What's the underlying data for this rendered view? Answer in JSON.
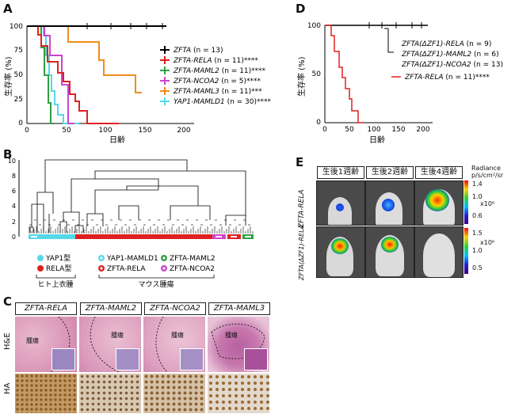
{
  "panels": {
    "A": "A",
    "B": "B",
    "C": "C",
    "D": "D",
    "E": "E"
  },
  "panelA": {
    "ylabel": "生存率 (%)",
    "xlabel": "日齢",
    "yticks": [
      "0",
      "25",
      "50",
      "75",
      "100"
    ],
    "xticks": [
      "0",
      "50",
      "100",
      "150",
      "200"
    ],
    "legend": [
      {
        "label": "ZFTA",
        "suffix": " (n = 13)",
        "color": "#000000"
      },
      {
        "label": "ZFTA-RELA",
        "suffix": " (n = 11)****",
        "color": "#e02020"
      },
      {
        "label": "ZFTA-MAML2",
        "suffix": " (n = 11)****",
        "color": "#2ea043"
      },
      {
        "label": "ZFTA-NCOA2",
        "suffix": " (n = 5)****",
        "color": "#cc44cc"
      },
      {
        "label": "ZFTA-MAML3",
        "suffix": " (n = 11)***",
        "color": "#f08c1c"
      },
      {
        "label": "YAP1-MAMLD1",
        "suffix": " (n = 30)****",
        "color": "#55d8e8"
      }
    ]
  },
  "panelD": {
    "ylabel": "生存率 (%)",
    "xlabel": "日齢",
    "yticks": [
      "0",
      "50",
      "100"
    ],
    "xticks": [
      "0",
      "50",
      "100",
      "150",
      "200"
    ],
    "legend": [
      {
        "label": "ZFTA(ΔZF1)-RELA",
        "suffix": " (n = 9)",
        "color": "#000000"
      },
      {
        "label": "ZFTA(ΔZF1)-MAML2",
        "suffix": " (n = 6)",
        "color": "#000000"
      },
      {
        "label": "ZFTA(ΔZF1)-NCOA2",
        "suffix": " (n = 13)",
        "color": "#000000"
      },
      {
        "label": "ZFTA-RELA",
        "suffix": " (n = 11)****",
        "color": "#e02020"
      }
    ]
  },
  "panelB": {
    "yticks": [
      "0",
      "2",
      "4",
      "6",
      "8",
      "10"
    ],
    "legend": [
      {
        "label": "YAP1型",
        "color": "#55d8e8",
        "ring": false
      },
      {
        "label": "RELA型",
        "color": "#e02020",
        "ring": false
      },
      {
        "label": "YAP1-MAMLD1",
        "color": "#55d8e8",
        "ring": true
      },
      {
        "label": "ZFTA-RELA",
        "color": "#e02020",
        "ring": true
      },
      {
        "label": "ZFTA-MAML2",
        "color": "#2ea043",
        "ring": true
      },
      {
        "label": "ZFTA-NCOA2",
        "color": "#cc44cc",
        "ring": true
      }
    ],
    "group_human": "ヒト上衣腫",
    "group_mouse": "マウス腫瘍"
  },
  "panelC": {
    "columns": [
      "ZFTA-RELA",
      "ZFTA-MAML2",
      "ZFTA-NCOA2",
      "ZFTA-MAML3"
    ],
    "rows": [
      "H&E",
      "HA"
    ],
    "tumor_label": "腫瘍"
  },
  "panelE": {
    "columns": [
      "生後1週齢",
      "生後2週齢",
      "生後4週齢"
    ],
    "rows": [
      "ZFTA-RELA",
      "ZFTA(ΔZF1)-RELA"
    ],
    "scale_title_1": "Radiance",
    "scale_title_2": "p/s/cm²/sr",
    "scale1": {
      "top": "1.4",
      "mid": "1.0",
      "low": "0.6",
      "unit": "x10⁶"
    },
    "scale2": {
      "top": "1.5",
      "mid": "1.0",
      "low": "0.5",
      "unit": "x10⁶"
    }
  }
}
